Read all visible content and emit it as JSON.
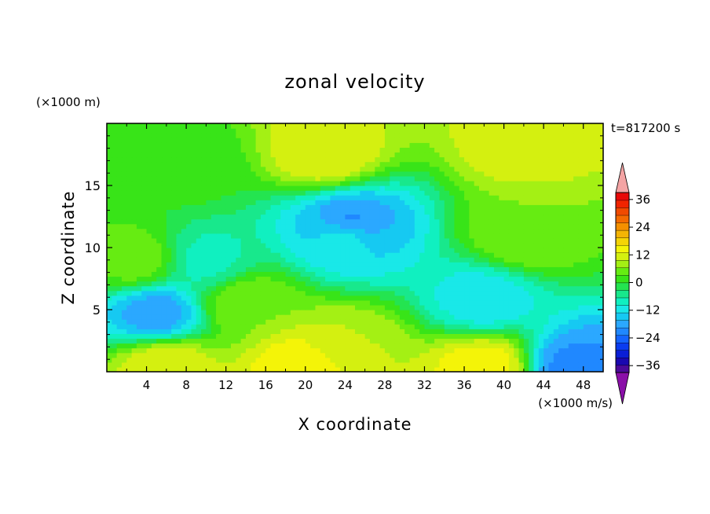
{
  "chart_data": {
    "type": "heatmap",
    "title": "zonal velocity",
    "xlabel": "X coordinate",
    "ylabel": "Z coordinate",
    "x_unit": "(×1000 m/s)",
    "y_unit": "(×1000 m)",
    "time_label": "t=817200 s",
    "xlim": [
      0,
      50
    ],
    "ylim": [
      0,
      20
    ],
    "xticks": [
      4,
      8,
      12,
      16,
      20,
      24,
      28,
      32,
      36,
      40,
      44,
      48
    ],
    "yticks": [
      5,
      10,
      15
    ],
    "colorbar": {
      "levels": [
        -42,
        -39,
        -36,
        -33,
        -30,
        -27,
        -24,
        -21,
        -18,
        -15,
        -12,
        -9,
        -6,
        -3,
        0,
        3,
        6,
        9,
        12,
        15,
        18,
        21,
        24,
        27,
        30,
        33,
        36,
        39,
        42
      ],
      "labeled_ticks": [
        36,
        24,
        12,
        0,
        -12,
        -24,
        -36
      ],
      "extend": "both",
      "colors": [
        "#8a0fa8",
        "#4b0a9a",
        "#1a08b0",
        "#0a1ed6",
        "#0a3cf0",
        "#1464ff",
        "#2088ff",
        "#2ba8ff",
        "#16c9f2",
        "#19e8e8",
        "#10f0c0",
        "#18e88c",
        "#24e450",
        "#38e418",
        "#66ec12",
        "#a4f014",
        "#d4f010",
        "#f4f408",
        "#f4d406",
        "#f4b404",
        "#f49000",
        "#f46a00",
        "#f04a00",
        "#f02400",
        "#e80808",
        "#f4a4a4"
      ]
    },
    "field_centers": [
      {
        "x": 5,
        "z": 4.7,
        "u": -20
      },
      {
        "x": 24.5,
        "z": 12,
        "u": -22
      },
      {
        "x": 24,
        "z": 11,
        "u": -13
      },
      {
        "x": 10,
        "z": 9,
        "u": -10
      },
      {
        "x": 38,
        "z": 5.8,
        "u": -14
      },
      {
        "x": 14,
        "z": 5.5,
        "u": 3
      },
      {
        "x": 24,
        "z": 2,
        "u": 6
      },
      {
        "x": 6,
        "z": 0.6,
        "u": 9
      },
      {
        "x": 20,
        "z": 0.4,
        "u": 12
      },
      {
        "x": 38,
        "z": 0.4,
        "u": 11
      },
      {
        "x": 47,
        "z": 0.3,
        "u": -22
      },
      {
        "x": 3,
        "z": 9,
        "u": 2
      },
      {
        "x": 42,
        "z": 11,
        "u": 3
      },
      {
        "x": 22,
        "z": 17.5,
        "u": 9
      },
      {
        "x": 42,
        "z": 18.5,
        "u": 8
      },
      {
        "x": 8,
        "z": 16.2,
        "u": -2
      }
    ]
  }
}
